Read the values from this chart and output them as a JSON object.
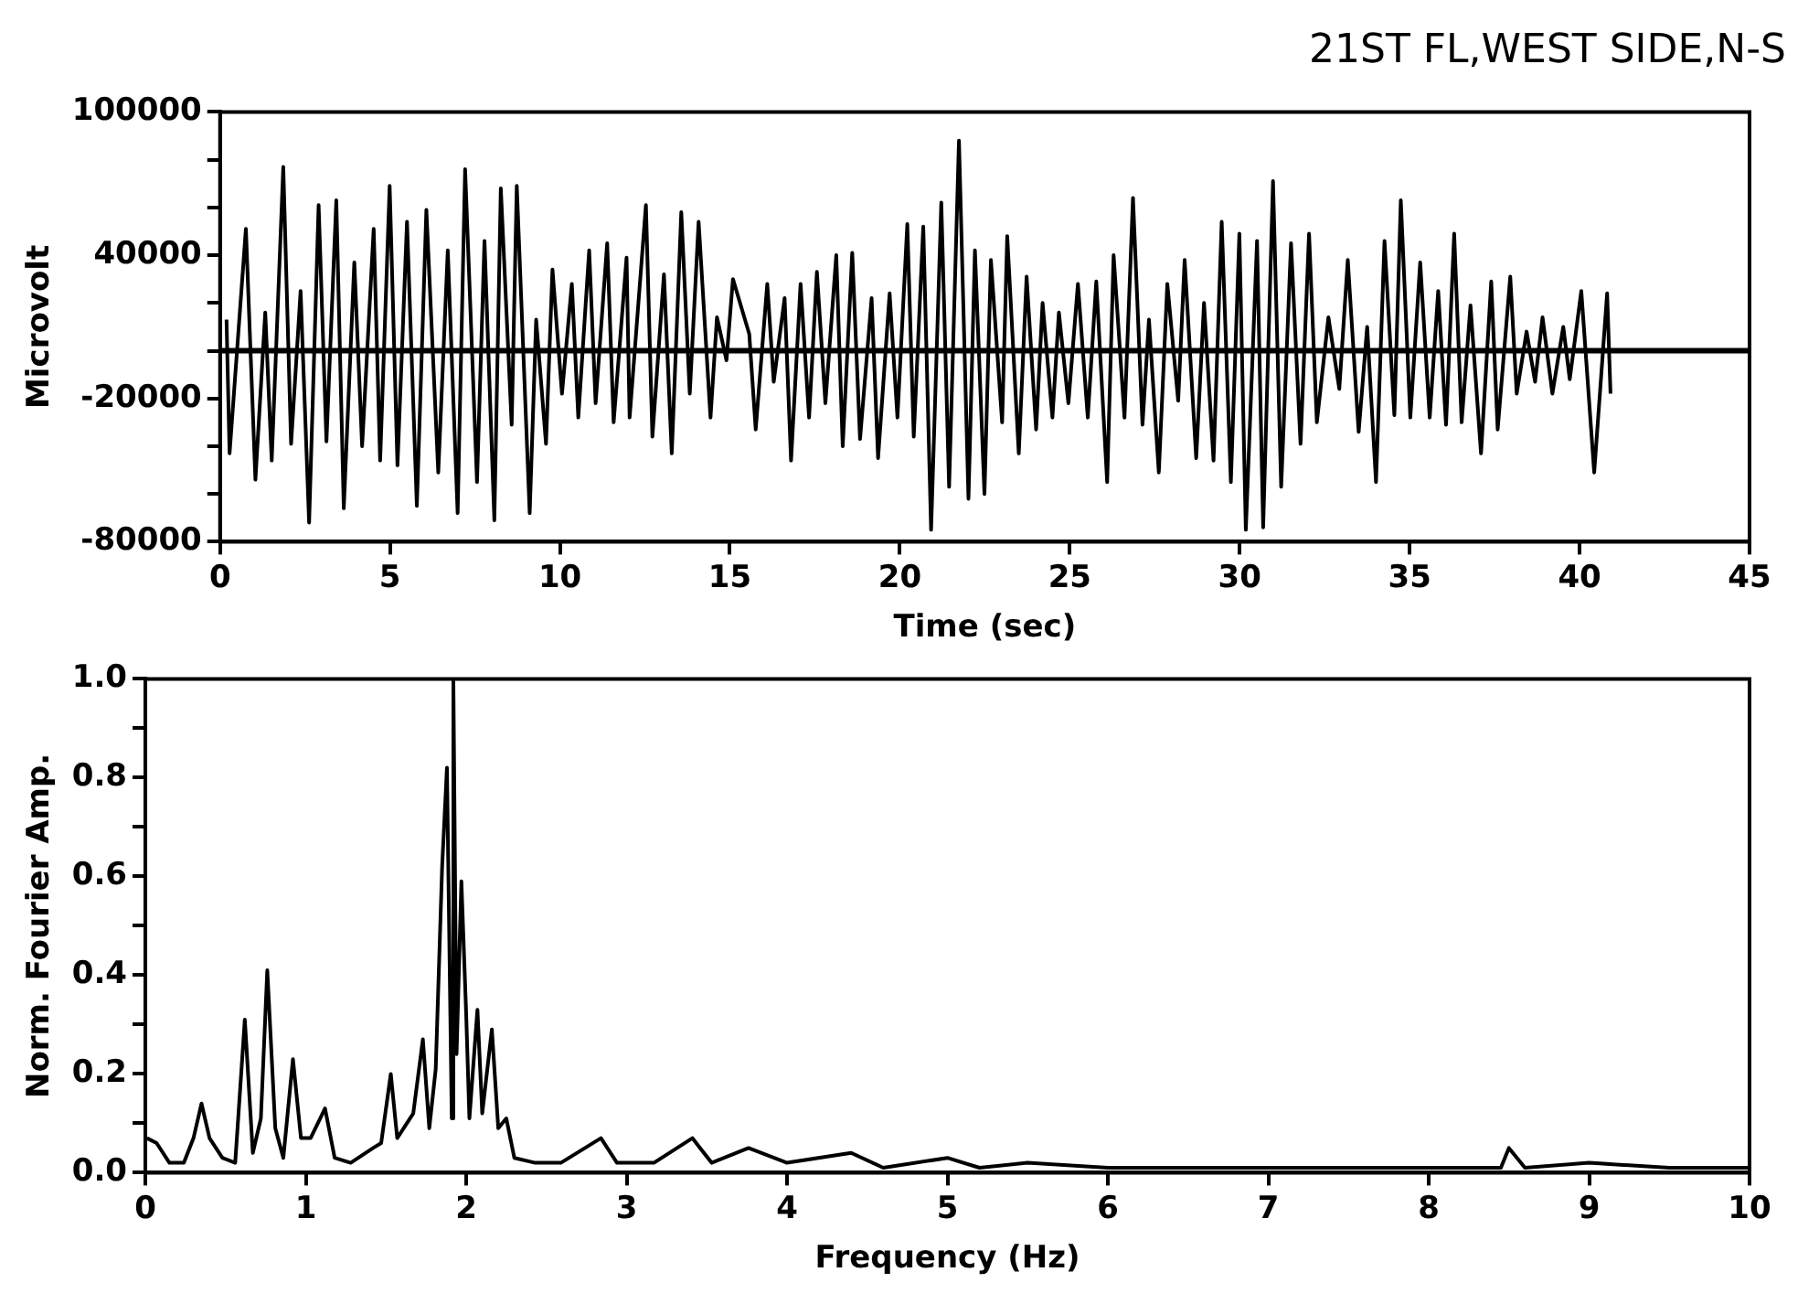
{
  "chart_data": [
    {
      "type": "line",
      "title": "21ST FL,WEST SIDE,N-S",
      "xlabel": "Time (sec)",
      "ylabel": "Microvolt",
      "marker": "none",
      "xlim": [
        0,
        45
      ],
      "xticks": [
        0,
        5,
        10,
        15,
        20,
        25,
        30,
        35,
        40,
        45
      ],
      "ylim": [
        -80000,
        100000
      ],
      "yticks": [
        -80000,
        {
          "value": -60000,
          "label": null
        },
        {
          "value": -40000,
          "label": null
        },
        -20000,
        {
          "value": 0,
          "label": null
        },
        {
          "value": 20000,
          "label": null
        },
        40000,
        {
          "value": 60000,
          "label": null
        },
        {
          "value": 80000,
          "label": null
        },
        100000
      ],
      "ref_lines": [
        {
          "axis": "y",
          "value": 0,
          "color": "#000000"
        }
      ],
      "x": [
        0.19,
        0.28,
        0.76,
        1.04,
        1.33,
        1.52,
        1.86,
        2.09,
        2.37,
        2.62,
        2.9,
        3.13,
        3.42,
        3.64,
        3.95,
        4.18,
        4.52,
        4.71,
        4.99,
        5.22,
        5.5,
        5.79,
        6.07,
        6.42,
        6.7,
        6.99,
        7.21,
        7.56,
        7.78,
        8.07,
        8.26,
        8.58,
        8.73,
        9.11,
        9.3,
        9.59,
        9.78,
        10.06,
        10.35,
        10.54,
        10.86,
        11.05,
        11.39,
        11.58,
        11.96,
        12.05,
        12.53,
        12.72,
        13.06,
        13.29,
        13.57,
        13.82,
        14.08,
        14.43,
        14.62,
        14.9,
        15.09,
        15.57,
        15.76,
        16.1,
        16.29,
        16.61,
        16.8,
        17.08,
        17.33,
        17.56,
        17.81,
        18.13,
        18.32,
        18.6,
        18.83,
        19.17,
        19.36,
        19.7,
        19.93,
        20.22,
        20.41,
        20.69,
        20.92,
        21.22,
        21.45,
        21.74,
        22.02,
        22.21,
        22.49,
        22.68,
        23.01,
        23.16,
        23.5,
        23.73,
        24.01,
        24.2,
        24.49,
        24.68,
        24.96,
        25.24,
        25.53,
        25.78,
        26.1,
        26.29,
        26.61,
        26.86,
        27.14,
        27.33,
        27.62,
        27.87,
        28.19,
        28.38,
        28.72,
        28.95,
        29.23,
        29.47,
        29.74,
        29.99,
        30.18,
        30.51,
        30.69,
        30.98,
        31.22,
        31.51,
        31.79,
        32.04,
        32.27,
        32.61,
        32.93,
        33.18,
        33.5,
        33.75,
        34.01,
        34.26,
        34.55,
        34.74,
        35.02,
        35.31,
        35.59,
        35.84,
        36.07,
        36.31,
        36.53,
        36.79,
        37.1,
        37.4,
        37.59,
        37.96,
        38.15,
        38.44,
        38.69,
        38.91,
        39.2,
        39.52,
        39.71,
        40.05,
        40.43,
        40.81,
        40.91
      ],
      "series": [
        {
          "color": "#000000",
          "values": [
            13000,
            -43000,
            51000,
            -54000,
            16000,
            -46000,
            77000,
            -39000,
            25000,
            -72000,
            61000,
            -38000,
            63000,
            -66000,
            37000,
            -40000,
            51000,
            -46000,
            69000,
            -48000,
            54000,
            -65000,
            59000,
            -51000,
            42000,
            -68000,
            76000,
            -55000,
            46000,
            -71000,
            68000,
            -31000,
            69000,
            -68000,
            13000,
            -39000,
            34000,
            -18000,
            28000,
            -28000,
            42000,
            -22000,
            45000,
            -30000,
            39000,
            -28000,
            61000,
            -36000,
            32000,
            -43000,
            58000,
            -18000,
            54000,
            -28000,
            14000,
            -4000,
            30000,
            7000,
            -33000,
            28000,
            -13000,
            22000,
            -46000,
            28000,
            -28000,
            33000,
            -22000,
            40000,
            -40000,
            41000,
            -37000,
            22000,
            -45000,
            24000,
            -28000,
            53000,
            -36000,
            52000,
            -75000,
            62000,
            -57000,
            88000,
            -62000,
            42000,
            -60000,
            38000,
            -30000,
            48000,
            -43000,
            31000,
            -33000,
            20000,
            -28000,
            16000,
            -22000,
            28000,
            -28000,
            29000,
            -55000,
            40000,
            -28000,
            64000,
            -31000,
            13000,
            -51000,
            28000,
            -21000,
            38000,
            -45000,
            20000,
            -46000,
            54000,
            -55000,
            49000,
            -75000,
            46000,
            -74000,
            71000,
            -57000,
            45000,
            -39000,
            49000,
            -30000,
            14000,
            -16000,
            38000,
            -34000,
            10000,
            -55000,
            46000,
            -27000,
            63000,
            -28000,
            37000,
            -28000,
            25000,
            -31000,
            49000,
            -30000,
            19000,
            -43000,
            29000,
            -33000,
            31000,
            -18000,
            8000,
            -13000,
            14000,
            -18000,
            10000,
            -12000,
            25000,
            -51000,
            24000,
            -18000
          ]
        }
      ]
    },
    {
      "type": "line",
      "xlabel": "Frequency (Hz)",
      "ylabel": "Norm. Fourier Amp.",
      "marker": "none",
      "xlim": [
        0,
        10
      ],
      "xticks": [
        0,
        1,
        2,
        3,
        4,
        5,
        6,
        7,
        8,
        9,
        10
      ],
      "ylim": [
        0,
        1
      ],
      "yticks": [
        {
          "value": 0,
          "label": "0.0"
        },
        {
          "value": 0.1,
          "label": null
        },
        0.2,
        {
          "value": 0.3,
          "label": null
        },
        0.4,
        {
          "value": 0.5,
          "label": null
        },
        0.6,
        {
          "value": 0.7,
          "label": null
        },
        0.8,
        {
          "value": 0.9,
          "label": null
        },
        {
          "value": 1,
          "label": "1.0"
        }
      ],
      "x": [
        0.01,
        0.07,
        0.15,
        0.24,
        0.3,
        0.35,
        0.4,
        0.48,
        0.56,
        0.62,
        0.67,
        0.72,
        0.76,
        0.81,
        0.86,
        0.92,
        0.97,
        1.03,
        1.12,
        1.18,
        1.28,
        1.42,
        1.47,
        1.53,
        1.57,
        1.67,
        1.73,
        1.77,
        1.81,
        1.85,
        1.88,
        1.91,
        1.92,
        1.94,
        1.97,
        2.0,
        2.02,
        2.07,
        2.1,
        2.16,
        2.2,
        2.25,
        2.3,
        2.43,
        2.59,
        2.84,
        2.94,
        3.17,
        3.41,
        3.53,
        3.76,
        4.0,
        4.4,
        4.6,
        5.0,
        5.2,
        5.5,
        6.0,
        7.0,
        8.0,
        8.45,
        8.5,
        8.6,
        9.0,
        9.5,
        10.0
      ],
      "series": [
        {
          "color": "#000000",
          "values": [
            0.07,
            0.06,
            0.02,
            0.02,
            0.07,
            0.14,
            0.07,
            0.03,
            0.02,
            0.31,
            0.04,
            0.11,
            0.41,
            0.09,
            0.03,
            0.23,
            0.07,
            0.07,
            0.13,
            0.03,
            0.02,
            0.05,
            0.06,
            0.2,
            0.07,
            0.12,
            0.27,
            0.09,
            0.21,
            0.62,
            0.82,
            0.11,
            1.0,
            0.24,
            0.59,
            0.32,
            0.11,
            0.33,
            0.12,
            0.29,
            0.09,
            0.11,
            0.03,
            0.02,
            0.02,
            0.07,
            0.02,
            0.02,
            0.07,
            0.02,
            0.05,
            0.02,
            0.04,
            0.01,
            0.03,
            0.01,
            0.02,
            0.01,
            0.01,
            0.01,
            0.01,
            0.05,
            0.01,
            0.02,
            0.01,
            0.01
          ]
        }
      ]
    }
  ]
}
